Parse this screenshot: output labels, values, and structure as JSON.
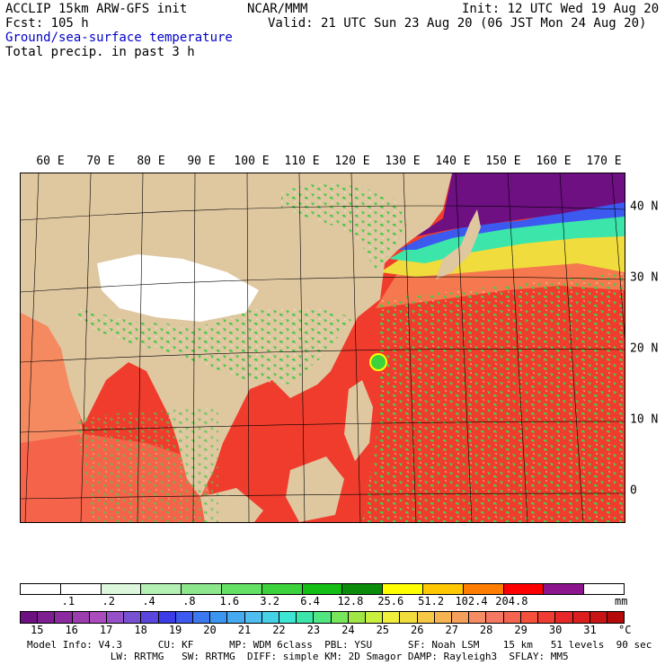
{
  "header": {
    "model": "ACCLIP 15km ARW-GFS init",
    "fcst": "Fcst:  105 h",
    "center": "NCAR/MMM",
    "init": "Init: 12 UTC Wed 19 Aug 20",
    "valid": "Valid: 21 UTC Sun 23 Aug 20 (06 JST Mon 24 Aug 20)",
    "field1": "Ground/sea-surface temperature",
    "field2": "Total precip. in past 3 h"
  },
  "map": {
    "lon_labels": [
      "60 E",
      "70 E",
      "80 E",
      "90 E",
      "100 E",
      "110 E",
      "120 E",
      "130 E",
      "140 E",
      "150 E",
      "160 E",
      "170 E"
    ],
    "lat_labels": [
      "40 N",
      "30 N",
      "20 N",
      "10 N",
      "0"
    ],
    "colors": {
      "land": "#dfc7a0",
      "plateau": "#ffffff",
      "sst_warm": "#f03c2c",
      "sst_hot": "#e81c1c",
      "sst_cool": "#f58a60",
      "precip": "#55d955"
    }
  },
  "precip_scale": {
    "labels": [
      ".1",
      ".2",
      ".4",
      ".8",
      "1.6",
      "3.2",
      "6.4",
      "12.8",
      "25.6",
      "51.2",
      "102.4",
      "204.8"
    ],
    "unit": "mm",
    "colors": [
      "#ffffff",
      "#ffffff",
      "#dcf7dc",
      "#b4efb4",
      "#8ce68c",
      "#64e064",
      "#3cd23c",
      "#14be14",
      "#0a8c0a",
      "#ffff00",
      "#ffc800",
      "#ff7d00",
      "#ff0000",
      "#8c148c",
      "#ffffff"
    ]
  },
  "sst_scale": {
    "labels": [
      "15",
      "16",
      "17",
      "18",
      "19",
      "20",
      "21",
      "22",
      "23",
      "24",
      "25",
      "26",
      "27",
      "28",
      "29",
      "30",
      "31"
    ],
    "unit": "°C",
    "colors": [
      "#6e0f82",
      "#7d1e91",
      "#8c2ba0",
      "#9b3caf",
      "#aa4bbe",
      "#9650c8",
      "#7850d2",
      "#5a46dc",
      "#3c3ce6",
      "#3c5af0",
      "#3c78f0",
      "#3c96f0",
      "#46aaf0",
      "#50bef0",
      "#46d2e6",
      "#3ce6d2",
      "#3ce6aa",
      "#50e682",
      "#78e65a",
      "#a0e646",
      "#c8f03c",
      "#f0f03c",
      "#f0dc3c",
      "#f5c846",
      "#f5b450",
      "#f5a05a",
      "#f58c64",
      "#f57864",
      "#f56450",
      "#f5503c",
      "#f03c32",
      "#e62828",
      "#dc1e1e",
      "#c81414",
      "#b40a0a"
    ]
  },
  "footer": {
    "line1": "Model Info: V4.3      CU: KF      MP: WDM 6class  PBL: YSU      SF: Noah LSM    15 km   51 levels  90 sec",
    "line2": "              LW: RRTMG   SW: RRTMG  DIFF: simple KM: 2D Smagor DAMP: Rayleigh3  SFLAY: MM5"
  }
}
